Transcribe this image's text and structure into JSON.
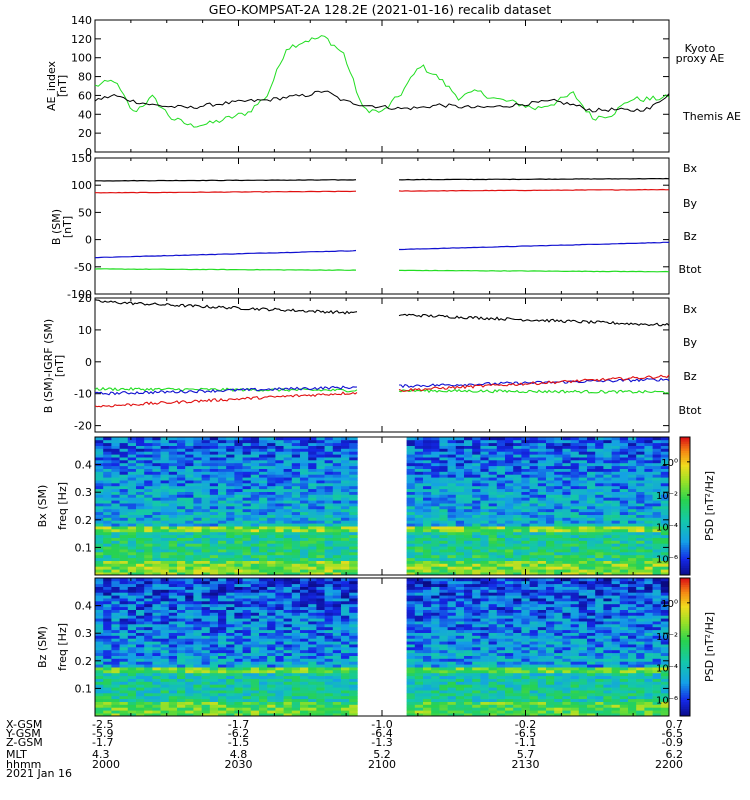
{
  "title": "GEO-KOMPSAT-2A 128.2E (2021-01-16) recalib dataset",
  "colors": {
    "black": "#000000",
    "green": "#22dd22",
    "red": "#e01010",
    "blue": "#1010d0",
    "kyoto": "#44dd44"
  },
  "panels": {
    "ae": {
      "ylabel": "AE_index",
      "unit": "[nT]",
      "ticks": [
        "0",
        "20",
        "40",
        "60",
        "80",
        "100",
        "120",
        "140"
      ],
      "legend": [
        {
          "text": "Kyoto",
          "color": "green"
        },
        {
          "text": "proxy AE",
          "color": "green"
        },
        {
          "text": "Themis AE",
          "color": "black"
        }
      ]
    },
    "b": {
      "ylabel": "B (SM)",
      "unit": "[nT]",
      "ticks": [
        "-100",
        "-50",
        "0",
        "50",
        "100",
        "150"
      ],
      "legend": [
        {
          "text": "Bx",
          "color": "blue"
        },
        {
          "text": "By",
          "color": "green"
        },
        {
          "text": "Bz",
          "color": "red"
        },
        {
          "text": "Btot",
          "color": "black"
        }
      ]
    },
    "db": {
      "ylabel": "B (SM)-IGRF (SM)",
      "unit": "[nT]",
      "ticks": [
        "-20",
        "-10",
        "0",
        "10",
        "20"
      ],
      "legend": [
        {
          "text": "Bx",
          "color": "blue"
        },
        {
          "text": "By",
          "color": "green"
        },
        {
          "text": "Bz",
          "color": "red"
        },
        {
          "text": "Btot",
          "color": "black"
        }
      ]
    },
    "bxspec": {
      "ylabel": "Bx (SM)",
      "unit": "freq [Hz]",
      "ticks": [
        "0.1",
        "0.2",
        "0.3",
        "0.4"
      ]
    },
    "bzspec": {
      "ylabel": "Bz (SM)",
      "unit": "freq [Hz]",
      "ticks": [
        "0.1",
        "0.2",
        "0.3",
        "0.4"
      ]
    }
  },
  "colorbar": {
    "label": "PSD [nT²/Hz]",
    "ticks": [
      "10⁰",
      "10⁻²",
      "10⁻⁴",
      "10⁻⁶"
    ]
  },
  "ephemeris": {
    "labels": [
      "X-GSM",
      "Y-GSM",
      "Z-GSM",
      "MLT",
      "hhmm",
      "2021 Jan 16"
    ],
    "columns": [
      [
        "-2.5",
        "-5.9",
        "-1.7",
        "4.3",
        "2000"
      ],
      [
        "-1.7",
        "-6.2",
        "-1.5",
        "4.8",
        "2030"
      ],
      [
        "-1.0",
        "-6.4",
        "-1.3",
        "5.2",
        "2100"
      ],
      [
        "-0.2",
        "-6.5",
        "-1.1",
        "5.7",
        "2130"
      ],
      [
        "0.7",
        "-6.5",
        "-0.9",
        "6.2",
        "2200"
      ]
    ]
  },
  "chart_data": [
    {
      "type": "line",
      "panel": "ae",
      "ylabel": "AE_index",
      "unit": "[nT]",
      "ylim": [
        0,
        140
      ],
      "x_hhmm_range": [
        "2000",
        "2200"
      ],
      "x_minutes": [
        0,
        4,
        8,
        12,
        16,
        20,
        24,
        28,
        32,
        36,
        40,
        44,
        48,
        52,
        56,
        60,
        64,
        68,
        72,
        76,
        80,
        84,
        88,
        92,
        96,
        100,
        104,
        108,
        112,
        116,
        120
      ],
      "series": [
        {
          "name": "Kyoto proxy AE",
          "color": "green",
          "values": [
            70,
            76,
            42,
            58,
            36,
            28,
            30,
            36,
            42,
            60,
            110,
            118,
            122,
            104,
            46,
            42,
            62,
            92,
            78,
            58,
            64,
            56,
            52,
            46,
            52,
            62,
            36,
            40,
            56,
            56,
            58
          ]
        },
        {
          "name": "Themis AE",
          "color": "black",
          "values": [
            55,
            60,
            54,
            50,
            48,
            47,
            50,
            52,
            54,
            55,
            58,
            60,
            65,
            54,
            50,
            48,
            46,
            47,
            50,
            48,
            47,
            48,
            50,
            52,
            54,
            50,
            44,
            45,
            44,
            46,
            62
          ]
        }
      ]
    },
    {
      "type": "line",
      "panel": "b",
      "ylabel": "B (SM)",
      "unit": "[nT]",
      "ylim": [
        -100,
        150
      ],
      "gap_hhmm": [
        "2059",
        "2102"
      ],
      "series": [
        {
          "name": "Btot",
          "color": "black",
          "start": 108,
          "end": 112
        },
        {
          "name": "Bz",
          "color": "red",
          "start": 86,
          "end": 92
        },
        {
          "name": "Bx",
          "color": "blue",
          "start": -33,
          "end": -5
        },
        {
          "name": "By",
          "color": "green",
          "start": -54,
          "end": -59
        }
      ]
    },
    {
      "type": "line",
      "panel": "db",
      "ylabel": "B (SM)-IGRF (SM)",
      "unit": "[nT]",
      "ylim": [
        -22,
        20
      ],
      "gap_hhmm": [
        "2059",
        "2102"
      ],
      "series": [
        {
          "name": "Btot",
          "color": "black",
          "start": 19,
          "end": 11.5
        },
        {
          "name": "By",
          "color": "green",
          "start": -8.5,
          "end": -9.5
        },
        {
          "name": "Bx",
          "color": "blue",
          "start": -10,
          "end": -5.5
        },
        {
          "name": "Bz",
          "color": "red",
          "start": -14,
          "end": -4.5
        }
      ]
    },
    {
      "type": "heatmap",
      "panel": "bxspec",
      "ylabel": "Bx (SM)",
      "unit": "freq [Hz]",
      "ylim": [
        0,
        0.5
      ],
      "gap_hhmm": [
        "2059",
        "2102"
      ],
      "colorbar": "PSD [nT²/Hz]"
    },
    {
      "type": "heatmap",
      "panel": "bzspec",
      "ylabel": "Bz (SM)",
      "unit": "freq [Hz]",
      "ylim": [
        0,
        0.5
      ],
      "gap_hhmm": [
        "2059",
        "2102"
      ],
      "colorbar": "PSD [nT²/Hz]"
    }
  ]
}
